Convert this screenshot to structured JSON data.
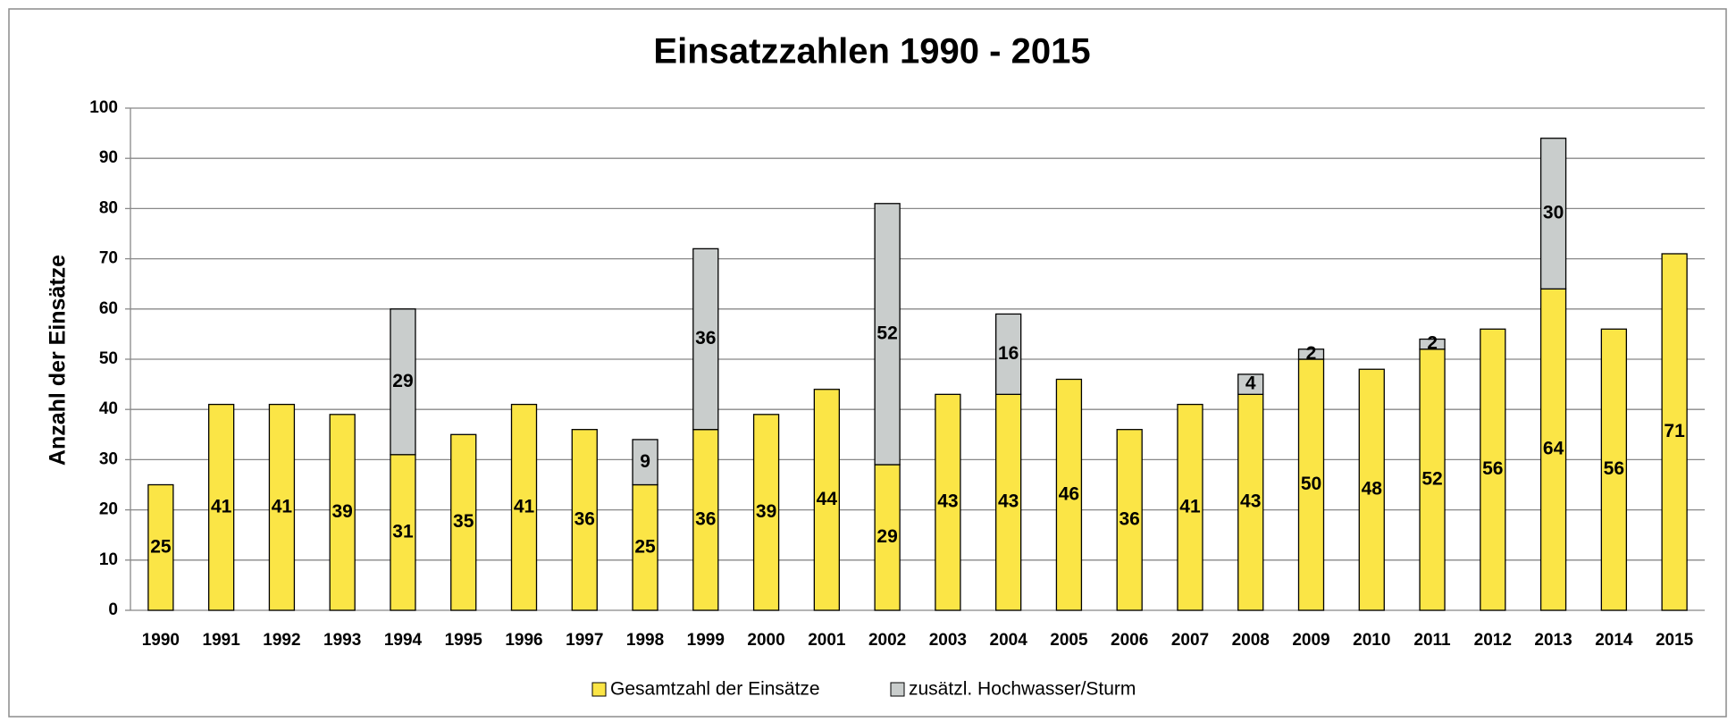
{
  "chart_data": {
    "type": "stacked_bar",
    "title": "Einsatzzahlen 1990 - 2015",
    "y_axis_label": "Anzahl der Einsätze",
    "categories": [
      "1990",
      "1991",
      "1992",
      "1993",
      "1994",
      "1995",
      "1996",
      "1997",
      "1998",
      "1999",
      "2000",
      "2001",
      "2002",
      "2003",
      "2004",
      "2005",
      "2006",
      "2007",
      "2008",
      "2009",
      "2010",
      "2011",
      "2012",
      "2013",
      "2014",
      "2015"
    ],
    "series": [
      {
        "name": "Gesamtzahl der Einsätze",
        "color": "#fbe546",
        "values": [
          25,
          41,
          41,
          39,
          31,
          35,
          41,
          36,
          25,
          36,
          39,
          44,
          29,
          43,
          43,
          46,
          36,
          41,
          43,
          50,
          48,
          52,
          56,
          64,
          56,
          71
        ]
      },
      {
        "name": "zusätzl. Hochwasser/Sturm",
        "color": "#c9cdcc",
        "values": [
          null,
          null,
          null,
          null,
          29,
          null,
          null,
          null,
          9,
          36,
          null,
          null,
          52,
          null,
          16,
          null,
          null,
          null,
          4,
          2,
          null,
          2,
          null,
          30,
          null,
          null
        ]
      }
    ],
    "ylim": [
      0,
      100
    ],
    "yticks": [
      0,
      10,
      20,
      30,
      40,
      50,
      60,
      70,
      80,
      90,
      100
    ],
    "grid": true,
    "legend": "bottom"
  }
}
